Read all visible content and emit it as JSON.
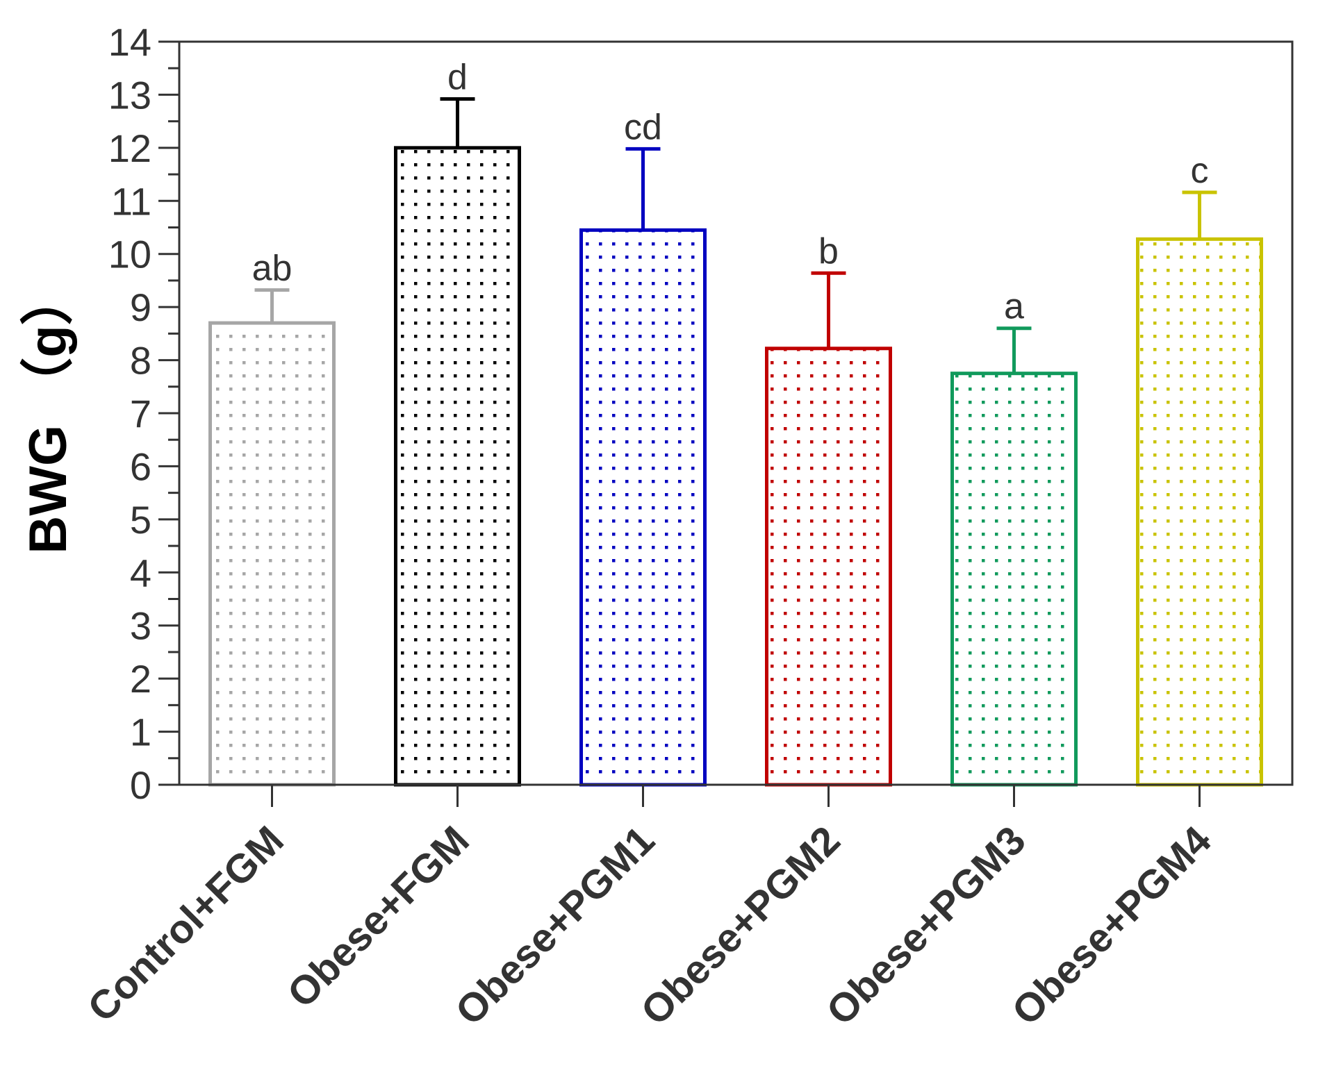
{
  "chart_data": {
    "type": "bar",
    "title": "",
    "xlabel": "",
    "ylabel": "BWG （g）",
    "ylim": [
      0,
      14
    ],
    "yticks": [
      "0",
      "1",
      "2",
      "3",
      "4",
      "5",
      "6",
      "7",
      "8",
      "9",
      "10",
      "11",
      "12",
      "13",
      "14"
    ],
    "grid": false,
    "legend": "none",
    "categories": [
      "Control+FGM",
      "Obese+FGM",
      "Obese+PGM1",
      "Obese+PGM2",
      "Obese+PGM3",
      "Obese+PGM4"
    ],
    "values": [
      8.7,
      12.0,
      10.45,
      8.22,
      7.75,
      10.28
    ],
    "errors": [
      0.62,
      0.92,
      1.53,
      1.42,
      0.85,
      0.88
    ],
    "significance": [
      "ab",
      "d",
      "cd",
      "b",
      "a",
      "c"
    ],
    "colors": [
      "#a6a6a6",
      "#000000",
      "#0000c0",
      "#c00000",
      "#119a5c",
      "#c9c300"
    ]
  }
}
